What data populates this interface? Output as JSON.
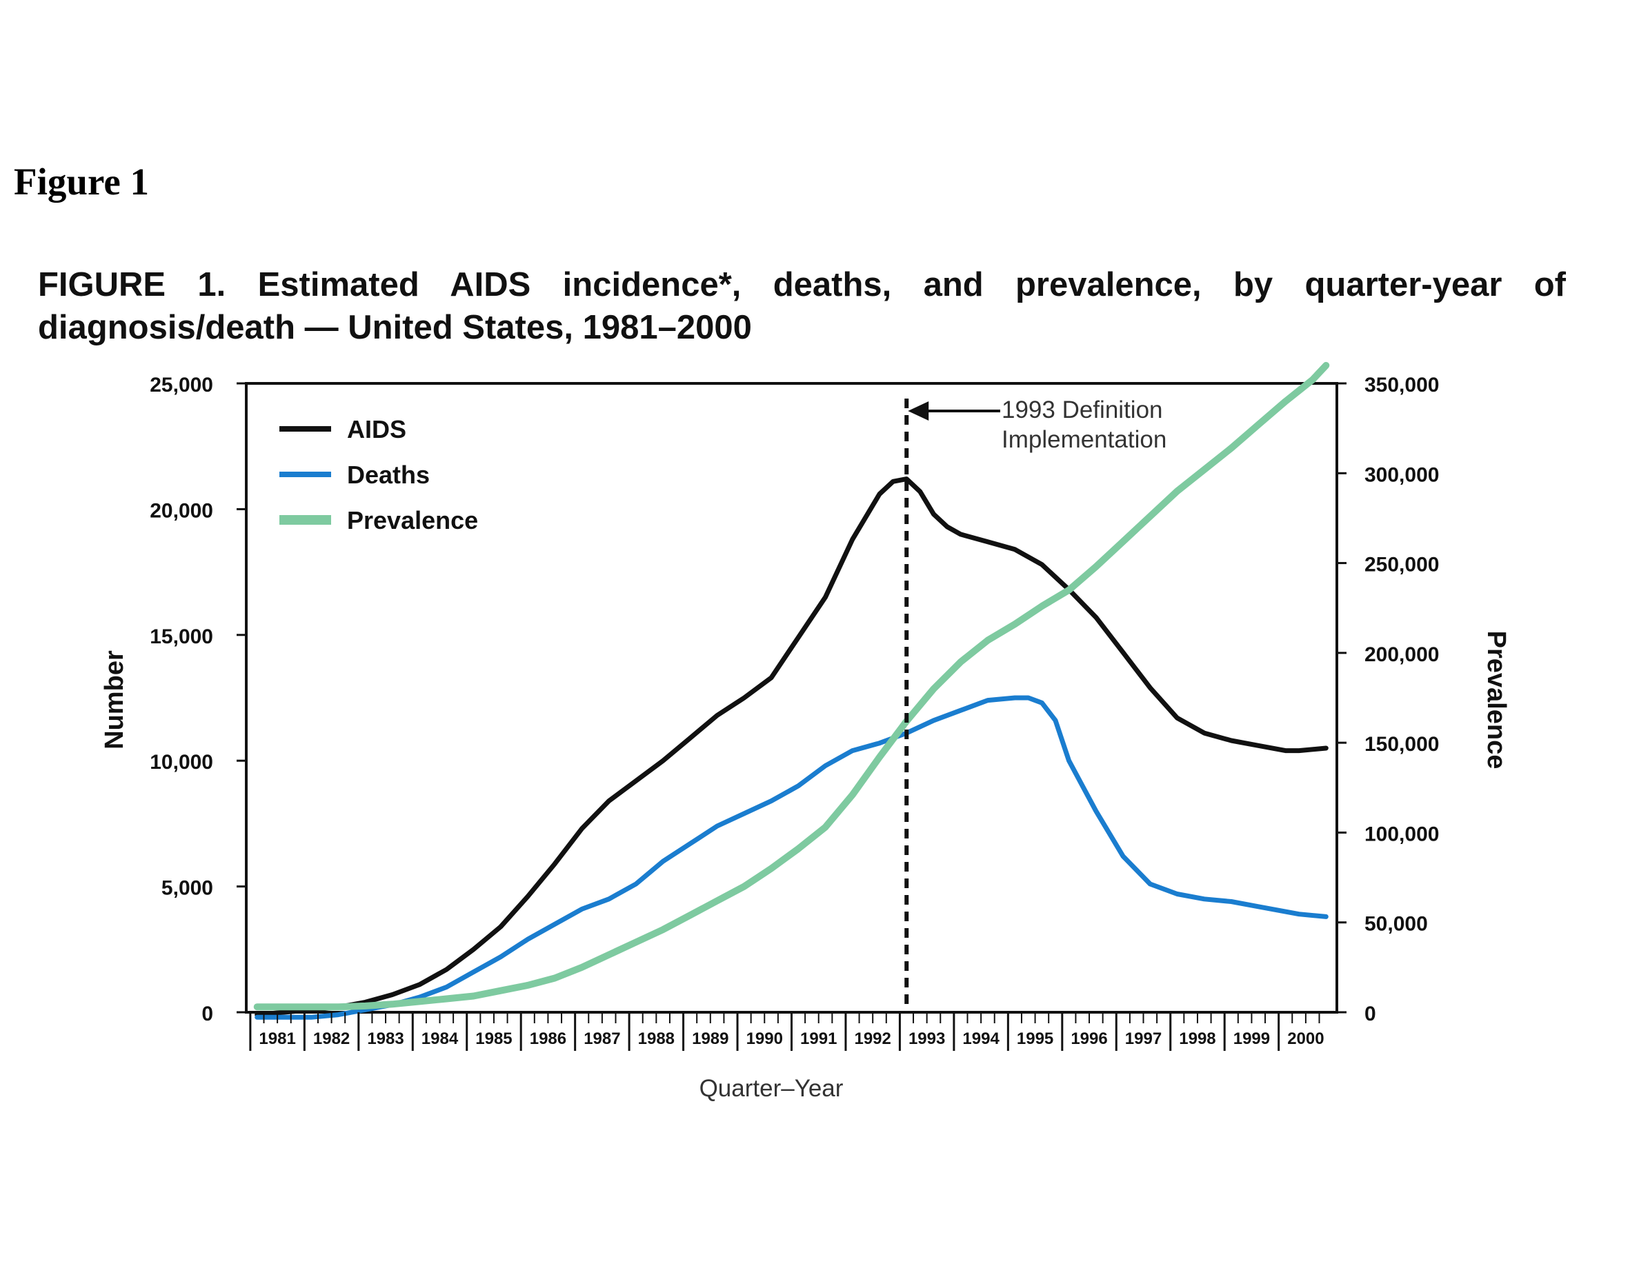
{
  "page": {
    "heading": "Figure 1",
    "caption": "FIGURE 1. Estimated AIDS incidence*, deaths, and prevalence, by quarter-year of diagnosis/death — United States, 1981–2000"
  },
  "chart_data": {
    "type": "line",
    "title": "FIGURE 1. Estimated AIDS incidence*, deaths, and prevalence, by quarter-year of diagnosis/death — United States, 1981–2000",
    "xlabel": "Quarter–Year",
    "ylabel": "Number",
    "y2label": "Prevalence",
    "xlim": [
      1981.0,
      2000.75
    ],
    "ylim": [
      0,
      25000
    ],
    "y2lim": [
      0,
      350000
    ],
    "yticks": [
      "0",
      "5,000",
      "10,000",
      "15,000",
      "20,000",
      "25,000"
    ],
    "y2ticks": [
      "0",
      "50,000",
      "100,000",
      "150,000",
      "200,000",
      "250,000",
      "300,000",
      "350,000"
    ],
    "xticks": [
      "1981",
      "1982",
      "1983",
      "1984",
      "1985",
      "1986",
      "1987",
      "1988",
      "1989",
      "1990",
      "1991",
      "1992",
      "1993",
      "1994",
      "1995",
      "1996",
      "1997",
      "1998",
      "1999",
      "2000"
    ],
    "legend_position": "top-left",
    "grid": false,
    "annotation": {
      "x": 1993.0,
      "lines": [
        "1993 Definition",
        "Implementation"
      ]
    },
    "series": [
      {
        "name": "AIDS",
        "axis": "left",
        "color": "#111111",
        "x": [
          1981.0,
          1981.5,
          1982.0,
          1982.5,
          1983.0,
          1983.5,
          1984.0,
          1984.5,
          1985.0,
          1985.5,
          1986.0,
          1986.5,
          1987.0,
          1987.5,
          1988.0,
          1988.5,
          1989.0,
          1989.5,
          1990.0,
          1990.5,
          1991.0,
          1991.5,
          1992.0,
          1992.5,
          1992.75,
          1993.0,
          1993.25,
          1993.5,
          1993.75,
          1994.0,
          1994.5,
          1995.0,
          1995.5,
          1996.0,
          1996.5,
          1997.0,
          1997.5,
          1998.0,
          1998.5,
          1999.0,
          1999.5,
          2000.0,
          2000.25,
          2000.75
        ],
        "values": [
          -100,
          0,
          100,
          200,
          400,
          700,
          1100,
          1700,
          2500,
          3400,
          4600,
          5900,
          7300,
          8400,
          9200,
          10000,
          10900,
          11800,
          12500,
          13300,
          14900,
          16500,
          18800,
          20600,
          21100,
          21200,
          20700,
          19800,
          19300,
          19000,
          18700,
          18400,
          17800,
          16800,
          15700,
          14300,
          12900,
          11700,
          11100,
          10800,
          10600,
          10400,
          10400,
          10500
        ]
      },
      {
        "name": "Deaths",
        "axis": "left",
        "color": "#1a7dcf",
        "x": [
          1981.0,
          1981.5,
          1982.0,
          1982.5,
          1983.0,
          1983.5,
          1984.0,
          1984.5,
          1985.0,
          1985.5,
          1986.0,
          1986.5,
          1987.0,
          1987.5,
          1988.0,
          1988.5,
          1989.0,
          1989.5,
          1990.0,
          1990.5,
          1991.0,
          1991.5,
          1992.0,
          1992.5,
          1993.0,
          1993.5,
          1994.0,
          1994.5,
          1995.0,
          1995.25,
          1995.5,
          1995.75,
          1996.0,
          1996.5,
          1997.0,
          1997.5,
          1998.0,
          1998.5,
          1999.0,
          1999.5,
          2000.0,
          2000.25,
          2000.75
        ],
        "values": [
          -200,
          -200,
          -200,
          -100,
          100,
          300,
          600,
          1000,
          1600,
          2200,
          2900,
          3500,
          4100,
          4500,
          5100,
          6000,
          6700,
          7400,
          7900,
          8400,
          9000,
          9800,
          10400,
          10700,
          11100,
          11600,
          12000,
          12400,
          12500,
          12500,
          12300,
          11600,
          10000,
          8000,
          6200,
          5100,
          4700,
          4500,
          4400,
          4200,
          4000,
          3900,
          3800
        ]
      },
      {
        "name": "Prevalence",
        "axis": "right",
        "color": "#7ecaa0",
        "x": [
          1981.0,
          1981.5,
          1982.0,
          1982.5,
          1983.0,
          1983.5,
          1984.0,
          1984.5,
          1985.0,
          1985.5,
          1986.0,
          1986.5,
          1987.0,
          1987.5,
          1988.0,
          1988.5,
          1989.0,
          1989.5,
          1990.0,
          1990.5,
          1991.0,
          1991.5,
          1992.0,
          1992.5,
          1993.0,
          1993.5,
          1994.0,
          1994.5,
          1995.0,
          1995.5,
          1996.0,
          1996.5,
          1997.0,
          1997.5,
          1998.0,
          1998.5,
          1999.0,
          1999.5,
          2000.0,
          2000.5,
          2000.75
        ],
        "values": [
          3000,
          3000,
          3000,
          3000,
          3500,
          4500,
          6000,
          7500,
          9000,
          12000,
          15000,
          19000,
          25000,
          32000,
          39000,
          46000,
          54000,
          62000,
          70000,
          80000,
          91000,
          103000,
          121000,
          142000,
          162000,
          180000,
          195000,
          207000,
          216000,
          226000,
          235000,
          248000,
          262000,
          276000,
          290000,
          302000,
          314000,
          327000,
          340000,
          352000,
          360000
        ]
      }
    ]
  }
}
